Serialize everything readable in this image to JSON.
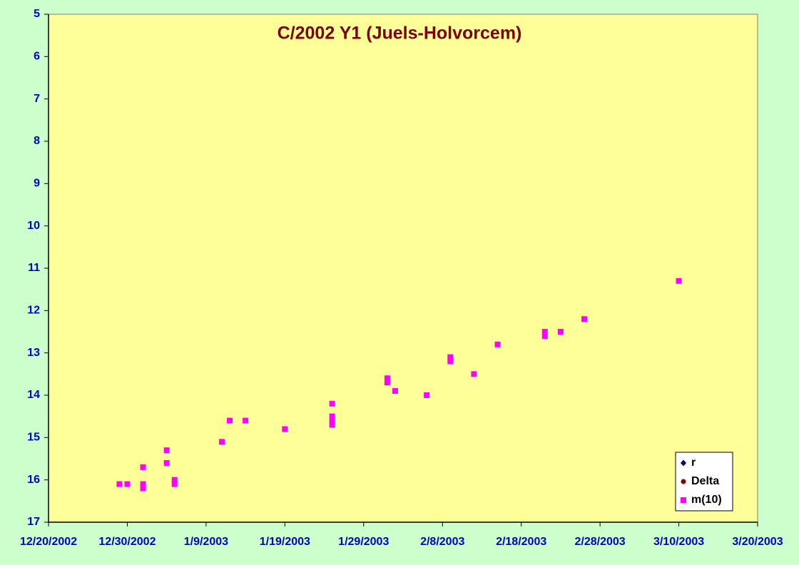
{
  "chart_data": {
    "type": "scatter",
    "title": "C/2002 Y1 (Juels-Holvorcem)",
    "xlim": [
      "12/20/2002",
      "3/20/2003"
    ],
    "xticks": [
      "12/20/2002",
      "12/30/2002",
      "1/9/2003",
      "1/19/2003",
      "1/29/2003",
      "2/8/2003",
      "2/18/2003",
      "2/28/2003",
      "3/10/2003",
      "3/20/2003"
    ],
    "ylim": [
      5,
      17
    ],
    "yticks": [
      5,
      6,
      7,
      8,
      9,
      10,
      11,
      12,
      13,
      14,
      15,
      16,
      17
    ],
    "y_reversed": true,
    "legend": "bottom-right",
    "series": [
      {
        "name": "r",
        "color": "#000080",
        "marker": "diamond",
        "x": [],
        "values": []
      },
      {
        "name": "Delta",
        "color": "#800000",
        "marker": "circle",
        "x": [],
        "values": []
      },
      {
        "name": "m(10)",
        "color": "#ff00ff",
        "marker": "square",
        "x": [
          "12/29/2002",
          "12/30/2002",
          "1/1/2003",
          "1/1/2003",
          "1/1/2003",
          "1/4/2003",
          "1/4/2003",
          "1/5/2003",
          "1/5/2003",
          "1/11/2003",
          "1/12/2003",
          "1/14/2003",
          "1/19/2003",
          "1/25/2003",
          "1/25/2003",
          "1/25/2003",
          "1/25/2003",
          "2/1/2003",
          "2/1/2003",
          "2/2/2003",
          "2/6/2003",
          "2/9/2003",
          "2/9/2003",
          "2/12/2003",
          "2/15/2003",
          "2/21/2003",
          "2/21/2003",
          "2/23/2003",
          "2/26/2003",
          "3/10/2003"
        ],
        "values": [
          16.1,
          16.1,
          15.7,
          16.1,
          16.2,
          15.3,
          15.6,
          16.0,
          16.1,
          15.1,
          14.6,
          14.6,
          14.8,
          14.2,
          14.5,
          14.6,
          14.7,
          13.6,
          13.7,
          13.9,
          14.0,
          13.1,
          13.2,
          13.5,
          12.8,
          12.5,
          12.6,
          12.5,
          12.2,
          11.3
        ]
      }
    ]
  }
}
